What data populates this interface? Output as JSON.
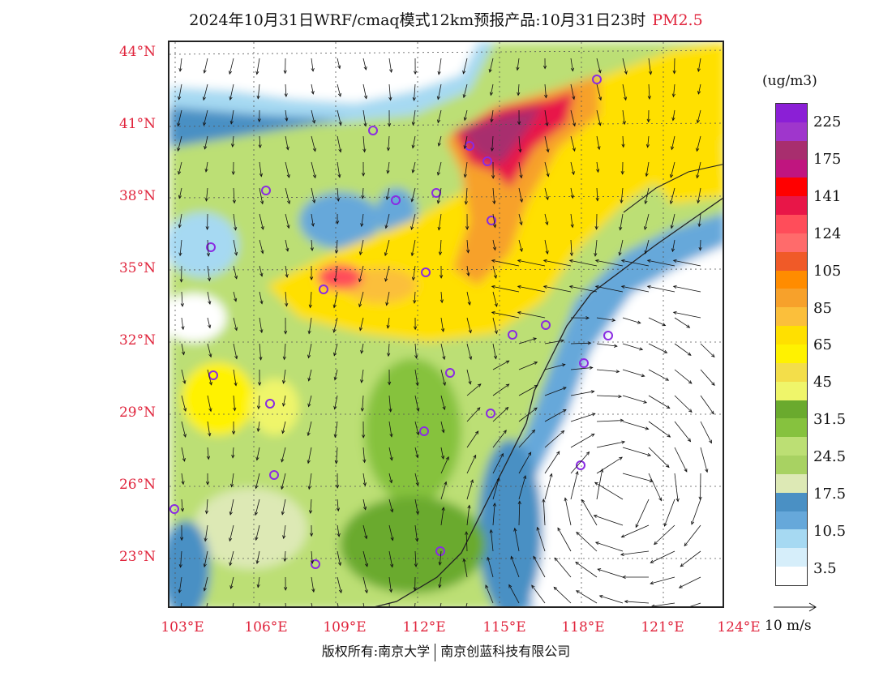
{
  "title": {
    "main": "2024年10月31日WRF/cmaq模式12km预报产品:10月31日23时",
    "pollutant": "PM2.5"
  },
  "latitude_labels": [
    "44°N",
    "41°N",
    "38°N",
    "35°N",
    "32°N",
    "29°N",
    "26°N",
    "23°N"
  ],
  "longitude_labels": [
    "103°E",
    "106°E",
    "109°E",
    "112°E",
    "115°E",
    "118°E",
    "121°E",
    "124°E"
  ],
  "colorbar": {
    "unit": "(ug/m3)",
    "labels": [
      "225",
      "175",
      "141",
      "124",
      "105",
      "85",
      "65",
      "45",
      "31.5",
      "24.5",
      "17.5",
      "10.5",
      "3.5"
    ],
    "colors": [
      "#8b1fd6",
      "#9f36cc",
      "#a82e6e",
      "#c0157f",
      "#ff0000",
      "#e81648",
      "#ff4d5a",
      "#ff6b6b",
      "#f05a28",
      "#ff8c00",
      "#f7a12b",
      "#fbbf3b",
      "#ffe000",
      "#fff200",
      "#f3de4a",
      "#eff56a",
      "#6aaa2e",
      "#86c23e",
      "#bcdf74",
      "#a8d262",
      "#dde9b5",
      "#4a90c4",
      "#66a8da",
      "#a6d9f2",
      "#d6eefa",
      "#ffffff"
    ]
  },
  "wind_legend": {
    "label": "10 m/s"
  },
  "footer": {
    "copyright": "版权所有:南京大学",
    "company": "南京创蓝科技有限公司"
  },
  "map_colors": {
    "background": "#ffffff",
    "low_blue": "#a6d9f2",
    "mid_blue": "#4a90c4",
    "green": "#86c23e",
    "light_green": "#bcdf74",
    "yellow": "#ffe000",
    "orange": "#f7a12b",
    "red": "#e81648",
    "magenta": "#a82e6e"
  }
}
